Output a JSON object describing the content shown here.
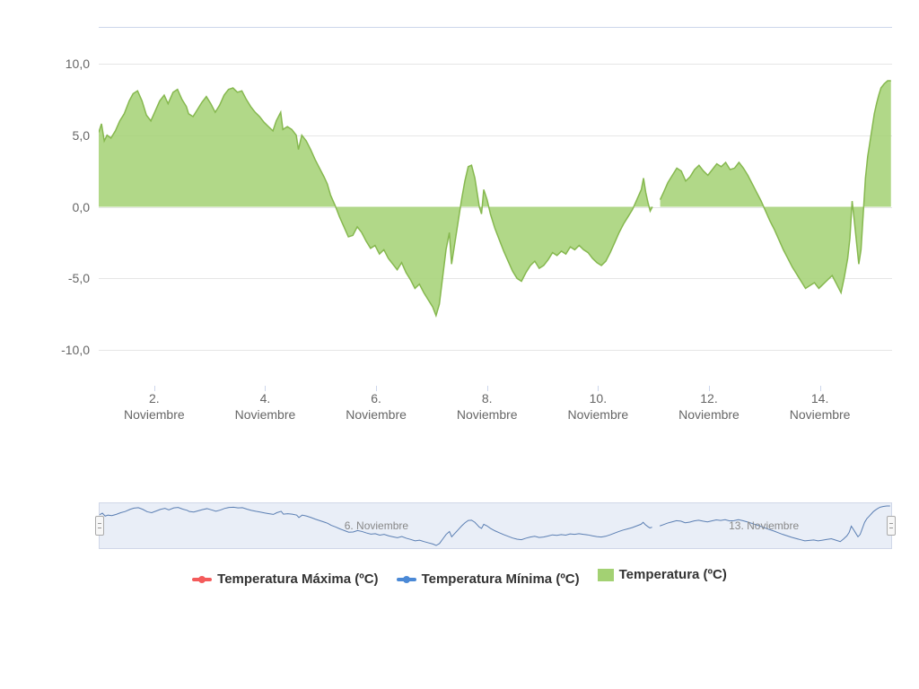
{
  "chart": {
    "type": "area",
    "background_color": "#ffffff",
    "plot_border_color": "#ccd6eb",
    "grid_color": "#e6e6e6",
    "font_color": "#666666",
    "font_size_axis": 14,
    "y": {
      "min": -12.5,
      "max": 12.5,
      "ticks": [
        -10,
        -5,
        0,
        5,
        10
      ],
      "tick_labels": [
        "-10,0",
        "-5,0",
        "0,0",
        "5,0",
        "10,0"
      ]
    },
    "x": {
      "min": 1,
      "max": 15.3,
      "ticks": [
        2,
        4,
        6,
        8,
        10,
        12,
        14
      ],
      "tick_labels_line1": [
        "2.",
        "4.",
        "6.",
        "8.",
        "10.",
        "12.",
        "14."
      ],
      "tick_labels_line2": [
        "Noviembre",
        "Noviembre",
        "Noviembre",
        "Noviembre",
        "Noviembre",
        "Noviembre",
        "Noviembre"
      ]
    },
    "series_area": {
      "name": "Temperatura (ºC)",
      "fill_color": "#a3d173",
      "stroke_color": "#86b84f",
      "stroke_width": 1.5,
      "fill_opacity": 0.85,
      "baseline": 0,
      "data": [
        [
          1.0,
          5.2
        ],
        [
          1.05,
          5.8
        ],
        [
          1.1,
          4.6
        ],
        [
          1.15,
          5.0
        ],
        [
          1.22,
          4.8
        ],
        [
          1.3,
          5.3
        ],
        [
          1.38,
          6.0
        ],
        [
          1.46,
          6.5
        ],
        [
          1.55,
          7.4
        ],
        [
          1.62,
          7.9
        ],
        [
          1.7,
          8.1
        ],
        [
          1.78,
          7.4
        ],
        [
          1.86,
          6.4
        ],
        [
          1.94,
          6.0
        ],
        [
          2.02,
          6.7
        ],
        [
          2.1,
          7.4
        ],
        [
          2.18,
          7.8
        ],
        [
          2.25,
          7.2
        ],
        [
          2.34,
          8.0
        ],
        [
          2.42,
          8.2
        ],
        [
          2.5,
          7.5
        ],
        [
          2.58,
          7.0
        ],
        [
          2.62,
          6.5
        ],
        [
          2.7,
          6.3
        ],
        [
          2.78,
          6.8
        ],
        [
          2.86,
          7.3
        ],
        [
          2.94,
          7.7
        ],
        [
          3.02,
          7.2
        ],
        [
          3.1,
          6.6
        ],
        [
          3.18,
          7.1
        ],
        [
          3.26,
          7.8
        ],
        [
          3.34,
          8.2
        ],
        [
          3.42,
          8.3
        ],
        [
          3.5,
          8.0
        ],
        [
          3.58,
          8.1
        ],
        [
          3.66,
          7.5
        ],
        [
          3.74,
          7.0
        ],
        [
          3.82,
          6.6
        ],
        [
          3.9,
          6.3
        ],
        [
          3.98,
          5.9
        ],
        [
          4.06,
          5.6
        ],
        [
          4.14,
          5.3
        ],
        [
          4.2,
          6.0
        ],
        [
          4.28,
          6.6
        ],
        [
          4.32,
          5.4
        ],
        [
          4.4,
          5.6
        ],
        [
          4.48,
          5.4
        ],
        [
          4.56,
          5.0
        ],
        [
          4.6,
          4.0
        ],
        [
          4.66,
          5.0
        ],
        [
          4.74,
          4.6
        ],
        [
          4.82,
          4.0
        ],
        [
          4.9,
          3.3
        ],
        [
          4.98,
          2.7
        ],
        [
          5.06,
          2.1
        ],
        [
          5.12,
          1.6
        ],
        [
          5.18,
          0.8
        ],
        [
          5.26,
          0.1
        ],
        [
          5.34,
          -0.7
        ],
        [
          5.42,
          -1.4
        ],
        [
          5.5,
          -2.1
        ],
        [
          5.58,
          -2.0
        ],
        [
          5.66,
          -1.4
        ],
        [
          5.74,
          -1.8
        ],
        [
          5.82,
          -2.4
        ],
        [
          5.9,
          -2.9
        ],
        [
          5.98,
          -2.7
        ],
        [
          6.06,
          -3.3
        ],
        [
          6.14,
          -3.0
        ],
        [
          6.22,
          -3.6
        ],
        [
          6.3,
          -4.0
        ],
        [
          6.38,
          -4.4
        ],
        [
          6.46,
          -3.9
        ],
        [
          6.54,
          -4.6
        ],
        [
          6.62,
          -5.1
        ],
        [
          6.7,
          -5.7
        ],
        [
          6.78,
          -5.4
        ],
        [
          6.86,
          -6.0
        ],
        [
          6.94,
          -6.5
        ],
        [
          7.02,
          -7.0
        ],
        [
          7.08,
          -7.6
        ],
        [
          7.14,
          -6.8
        ],
        [
          7.2,
          -4.9
        ],
        [
          7.26,
          -3.0
        ],
        [
          7.32,
          -1.8
        ],
        [
          7.36,
          -4.0
        ],
        [
          7.42,
          -2.5
        ],
        [
          7.48,
          -1.0
        ],
        [
          7.54,
          0.5
        ],
        [
          7.6,
          1.8
        ],
        [
          7.66,
          2.8
        ],
        [
          7.72,
          2.9
        ],
        [
          7.78,
          2.0
        ],
        [
          7.82,
          1.0
        ],
        [
          7.86,
          0.0
        ],
        [
          7.9,
          -0.5
        ],
        [
          7.94,
          1.2
        ],
        [
          8.0,
          0.5
        ],
        [
          8.06,
          -0.5
        ],
        [
          8.14,
          -1.5
        ],
        [
          8.22,
          -2.3
        ],
        [
          8.3,
          -3.1
        ],
        [
          8.38,
          -3.8
        ],
        [
          8.46,
          -4.5
        ],
        [
          8.54,
          -5.0
        ],
        [
          8.62,
          -5.2
        ],
        [
          8.7,
          -4.6
        ],
        [
          8.78,
          -4.1
        ],
        [
          8.86,
          -3.8
        ],
        [
          8.94,
          -4.3
        ],
        [
          9.02,
          -4.1
        ],
        [
          9.1,
          -3.7
        ],
        [
          9.18,
          -3.2
        ],
        [
          9.26,
          -3.4
        ],
        [
          9.34,
          -3.1
        ],
        [
          9.42,
          -3.3
        ],
        [
          9.5,
          -2.8
        ],
        [
          9.58,
          -3.0
        ],
        [
          9.66,
          -2.7
        ],
        [
          9.74,
          -3.0
        ],
        [
          9.82,
          -3.2
        ],
        [
          9.9,
          -3.6
        ],
        [
          9.98,
          -3.9
        ],
        [
          10.06,
          -4.1
        ],
        [
          10.14,
          -3.8
        ],
        [
          10.22,
          -3.2
        ],
        [
          10.3,
          -2.5
        ],
        [
          10.38,
          -1.8
        ],
        [
          10.46,
          -1.2
        ],
        [
          10.54,
          -0.7
        ],
        [
          10.62,
          -0.2
        ],
        [
          10.7,
          0.5
        ],
        [
          10.78,
          1.2
        ],
        [
          10.82,
          2.0
        ],
        [
          10.86,
          1.0
        ],
        [
          10.9,
          0.3
        ],
        [
          10.94,
          -0.3
        ],
        [
          10.98,
          0.0
        ]
      ],
      "data2": [
        [
          11.12,
          0.5
        ],
        [
          11.18,
          1.0
        ],
        [
          11.26,
          1.7
        ],
        [
          11.34,
          2.2
        ],
        [
          11.42,
          2.7
        ],
        [
          11.5,
          2.5
        ],
        [
          11.58,
          1.8
        ],
        [
          11.66,
          2.1
        ],
        [
          11.74,
          2.6
        ],
        [
          11.82,
          2.9
        ],
        [
          11.9,
          2.5
        ],
        [
          11.98,
          2.2
        ],
        [
          12.06,
          2.6
        ],
        [
          12.14,
          3.0
        ],
        [
          12.22,
          2.8
        ],
        [
          12.3,
          3.1
        ],
        [
          12.38,
          2.6
        ],
        [
          12.46,
          2.7
        ],
        [
          12.54,
          3.1
        ],
        [
          12.62,
          2.7
        ],
        [
          12.7,
          2.2
        ],
        [
          12.78,
          1.6
        ],
        [
          12.86,
          1.0
        ],
        [
          12.94,
          0.4
        ],
        [
          13.02,
          -0.3
        ],
        [
          13.1,
          -1.0
        ],
        [
          13.18,
          -1.6
        ],
        [
          13.26,
          -2.3
        ],
        [
          13.34,
          -3.0
        ],
        [
          13.42,
          -3.6
        ],
        [
          13.5,
          -4.2
        ],
        [
          13.58,
          -4.7
        ],
        [
          13.66,
          -5.2
        ],
        [
          13.74,
          -5.7
        ],
        [
          13.82,
          -5.5
        ],
        [
          13.9,
          -5.3
        ],
        [
          13.98,
          -5.7
        ],
        [
          14.06,
          -5.4
        ],
        [
          14.14,
          -5.1
        ],
        [
          14.22,
          -4.8
        ],
        [
          14.3,
          -5.4
        ],
        [
          14.38,
          -6.0
        ],
        [
          14.44,
          -4.9
        ],
        [
          14.5,
          -3.6
        ],
        [
          14.54,
          -2.2
        ],
        [
          14.58,
          0.4
        ],
        [
          14.62,
          -1.0
        ],
        [
          14.66,
          -2.5
        ],
        [
          14.7,
          -4.0
        ],
        [
          14.74,
          -3.0
        ],
        [
          14.78,
          -0.5
        ],
        [
          14.82,
          2.0
        ],
        [
          14.86,
          3.5
        ],
        [
          14.9,
          4.5
        ],
        [
          14.94,
          5.5
        ],
        [
          14.98,
          6.5
        ],
        [
          15.02,
          7.2
        ],
        [
          15.06,
          7.8
        ],
        [
          15.1,
          8.3
        ],
        [
          15.16,
          8.6
        ],
        [
          15.22,
          8.8
        ],
        [
          15.28,
          8.8
        ]
      ]
    },
    "navigator": {
      "background_color": "#e9eef7",
      "border_color": "#d0d7e8",
      "line_color": "#5b7fb3",
      "line_width": 1,
      "ticks": [
        {
          "x": 6,
          "label": "6. Noviembre"
        },
        {
          "x": 13,
          "label": "13. Noviembre"
        }
      ],
      "handle_bg": "#f7f7f7",
      "handle_border": "#aaaaaa"
    },
    "legend": {
      "font_size": 15,
      "font_weight": "700",
      "items": [
        {
          "label": "Temperatura Máxima (ºC)",
          "type": "line",
          "color": "#f45b5b"
        },
        {
          "label": "Temperatura Mínima (ºC)",
          "type": "line",
          "color": "#4b89d6"
        },
        {
          "label": "Temperatura (ºC)",
          "type": "area",
          "color": "#a3d173"
        }
      ]
    }
  }
}
